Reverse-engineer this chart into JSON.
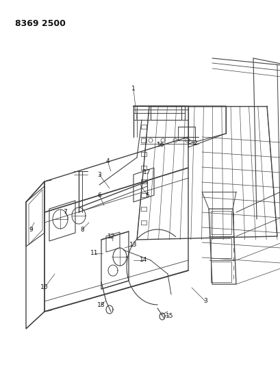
{
  "title": "8369 2500",
  "bg_color": "#ffffff",
  "line_color": "#404040",
  "fig_width": 4.1,
  "fig_height": 5.33,
  "dpi": 100
}
